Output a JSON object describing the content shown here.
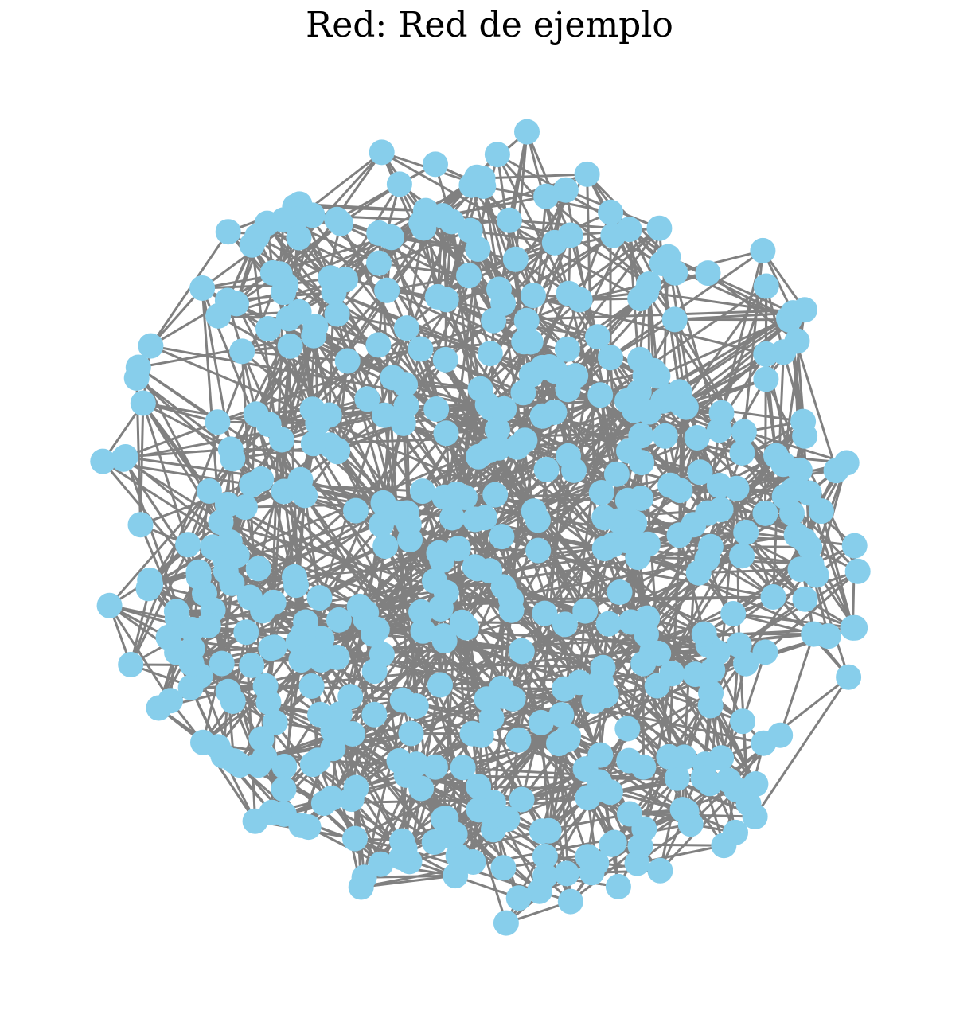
{
  "title": "Red: Red de ejemplo",
  "colors": {
    "node": "#87ceeb",
    "edge": "#808080",
    "background": "#ffffff"
  },
  "graph": {
    "node_count": 500,
    "layout": "force-directed, roughly circular",
    "node_labels_shown": false,
    "axes_shown": false
  }
}
